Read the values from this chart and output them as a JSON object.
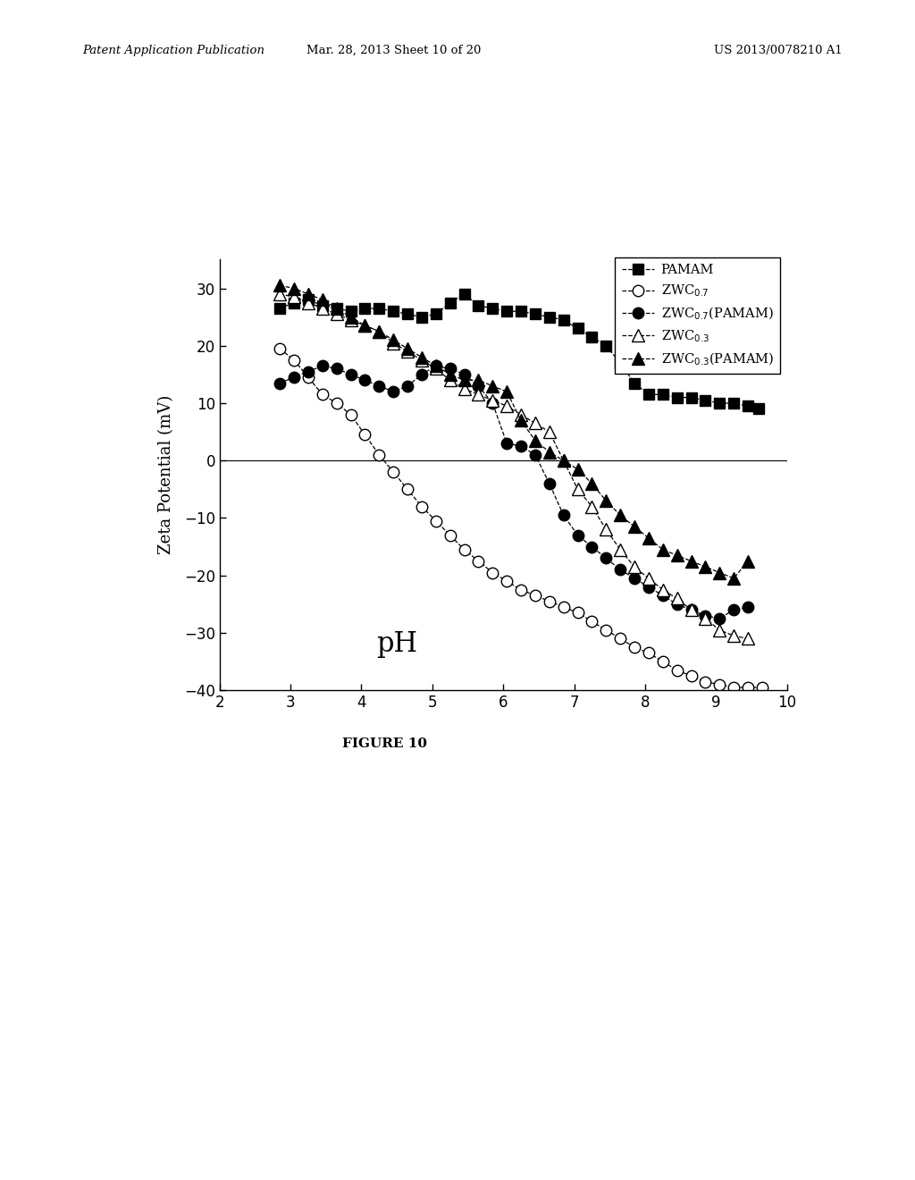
{
  "header_left": "Patent Application Publication",
  "header_mid": "Mar. 28, 2013 Sheet 10 of 20",
  "header_right": "US 2013/0078210 A1",
  "figure_label": "FIGURE 10",
  "xlabel_text": "pH",
  "ylabel": "Zeta Potential (mV)",
  "xlim": [
    2,
    10
  ],
  "ylim": [
    -40,
    35
  ],
  "yticks": [
    -40,
    -30,
    -20,
    -10,
    0,
    10,
    20,
    30
  ],
  "xticks": [
    2,
    3,
    4,
    5,
    6,
    7,
    8,
    9,
    10
  ],
  "background_color": "#ffffff",
  "series": [
    {
      "label": "PAMAM",
      "x": [
        2.85,
        3.05,
        3.25,
        3.45,
        3.65,
        3.85,
        4.05,
        4.25,
        4.45,
        4.65,
        4.85,
        5.05,
        5.25,
        5.45,
        5.65,
        5.85,
        6.05,
        6.25,
        6.45,
        6.65,
        6.85,
        7.05,
        7.25,
        7.45,
        7.65,
        7.85,
        8.05,
        8.25,
        8.45,
        8.65,
        8.85,
        9.05,
        9.25,
        9.45,
        9.6
      ],
      "y": [
        26.5,
        27.5,
        28.0,
        27.0,
        26.5,
        26.0,
        26.5,
        26.5,
        26.0,
        25.5,
        25.0,
        25.5,
        27.5,
        29.0,
        27.0,
        26.5,
        26.0,
        26.0,
        25.5,
        25.0,
        24.5,
        23.0,
        21.5,
        20.0,
        17.0,
        13.5,
        11.5,
        11.5,
        11.0,
        11.0,
        10.5,
        10.0,
        10.0,
        9.5,
        9.0
      ],
      "marker": "s",
      "filled": true
    },
    {
      "label": "ZWC$_{0.7}$",
      "x": [
        2.85,
        3.05,
        3.25,
        3.45,
        3.65,
        3.85,
        4.05,
        4.25,
        4.45,
        4.65,
        4.85,
        5.05,
        5.25,
        5.45,
        5.65,
        5.85,
        6.05,
        6.25,
        6.45,
        6.65,
        6.85,
        7.05,
        7.25,
        7.45,
        7.65,
        7.85,
        8.05,
        8.25,
        8.45,
        8.65,
        8.85,
        9.05,
        9.25,
        9.45,
        9.65
      ],
      "y": [
        19.5,
        17.5,
        14.5,
        11.5,
        10.0,
        8.0,
        4.5,
        1.0,
        -2.0,
        -5.0,
        -8.0,
        -10.5,
        -13.0,
        -15.5,
        -17.5,
        -19.5,
        -21.0,
        -22.5,
        -23.5,
        -24.5,
        -25.5,
        -26.5,
        -28.0,
        -29.5,
        -31.0,
        -32.5,
        -33.5,
        -35.0,
        -36.5,
        -37.5,
        -38.5,
        -39.0,
        -39.5,
        -39.5,
        -39.5
      ],
      "marker": "o",
      "filled": false
    },
    {
      "label": "ZWC$_{0.7}$(PAMAM)",
      "x": [
        2.85,
        3.05,
        3.25,
        3.45,
        3.65,
        3.85,
        4.05,
        4.25,
        4.45,
        4.65,
        4.85,
        5.05,
        5.25,
        5.45,
        5.65,
        5.85,
        6.05,
        6.25,
        6.45,
        6.65,
        6.85,
        7.05,
        7.25,
        7.45,
        7.65,
        7.85,
        8.05,
        8.25,
        8.45,
        8.65,
        8.85,
        9.05,
        9.25,
        9.45
      ],
      "y": [
        13.5,
        14.5,
        15.5,
        16.5,
        16.0,
        15.0,
        14.0,
        13.0,
        12.0,
        13.0,
        15.0,
        16.5,
        16.0,
        15.0,
        13.0,
        10.0,
        3.0,
        2.5,
        1.0,
        -4.0,
        -9.5,
        -13.0,
        -15.0,
        -17.0,
        -19.0,
        -20.5,
        -22.0,
        -23.5,
        -25.0,
        -26.0,
        -27.0,
        -27.5,
        -26.0,
        -25.5
      ],
      "marker": "o",
      "filled": true
    },
    {
      "label": "ZWC$_{0.3}$",
      "x": [
        2.85,
        3.05,
        3.25,
        3.45,
        3.65,
        3.85,
        4.05,
        4.25,
        4.45,
        4.65,
        4.85,
        5.05,
        5.25,
        5.45,
        5.65,
        5.85,
        6.05,
        6.25,
        6.45,
        6.65,
        6.85,
        7.05,
        7.25,
        7.45,
        7.65,
        7.85,
        8.05,
        8.25,
        8.45,
        8.65,
        8.85,
        9.05,
        9.25,
        9.45
      ],
      "y": [
        29.0,
        28.5,
        27.5,
        26.5,
        25.5,
        24.5,
        23.5,
        22.5,
        20.5,
        19.0,
        17.5,
        16.0,
        14.0,
        12.5,
        11.5,
        10.5,
        9.5,
        8.0,
        6.5,
        5.0,
        0.0,
        -5.0,
        -8.0,
        -12.0,
        -15.5,
        -18.5,
        -20.5,
        -22.5,
        -24.0,
        -26.0,
        -27.5,
        -29.5,
        -30.5,
        -31.0
      ],
      "marker": "^",
      "filled": false
    },
    {
      "label": "ZWC$_{0.3}$(PAMAM)",
      "x": [
        2.85,
        3.05,
        3.25,
        3.45,
        3.65,
        3.85,
        4.05,
        4.25,
        4.45,
        4.65,
        4.85,
        5.05,
        5.25,
        5.45,
        5.65,
        5.85,
        6.05,
        6.25,
        6.45,
        6.65,
        6.85,
        7.05,
        7.25,
        7.45,
        7.65,
        7.85,
        8.05,
        8.25,
        8.45,
        8.65,
        8.85,
        9.05,
        9.25,
        9.45
      ],
      "y": [
        30.5,
        30.0,
        29.0,
        28.0,
        26.5,
        25.0,
        23.5,
        22.5,
        21.0,
        19.5,
        18.0,
        16.5,
        15.0,
        14.0,
        14.0,
        13.0,
        12.0,
        7.0,
        3.5,
        1.5,
        0.0,
        -1.5,
        -4.0,
        -7.0,
        -9.5,
        -11.5,
        -13.5,
        -15.5,
        -16.5,
        -17.5,
        -18.5,
        -19.5,
        -20.5,
        -17.5
      ],
      "marker": "^",
      "filled": true
    }
  ]
}
